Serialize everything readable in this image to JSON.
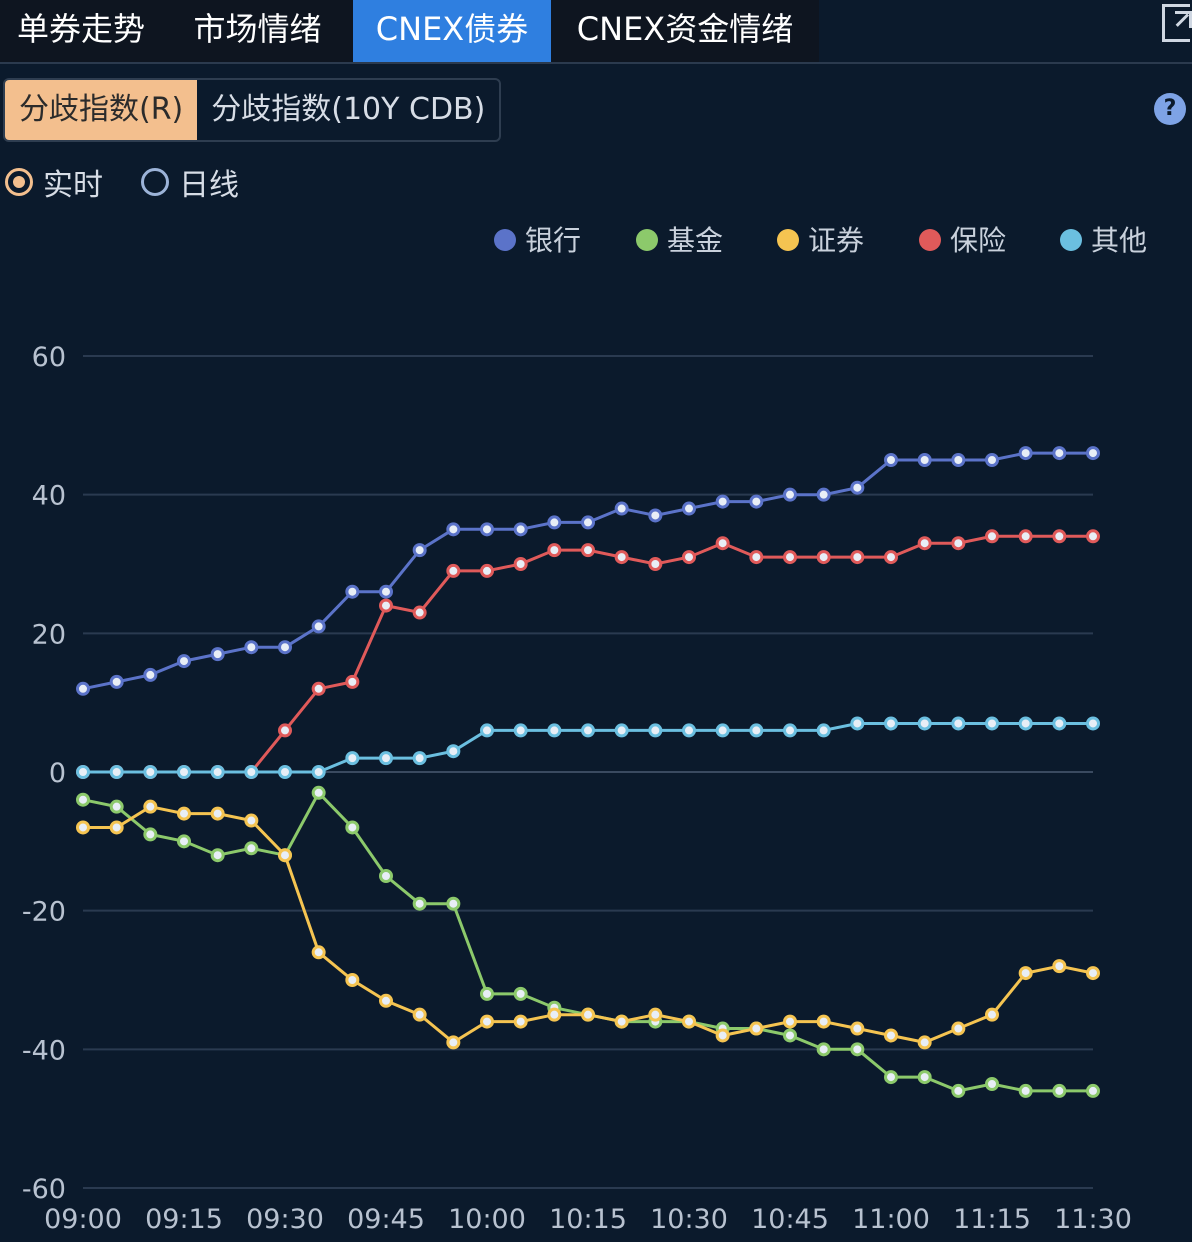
{
  "tabs": [
    {
      "label": "单券走势"
    },
    {
      "label": "市场情绪"
    },
    {
      "label": "CNEX债券"
    },
    {
      "label": "CNEX资金情绪"
    }
  ],
  "subtabs": [
    {
      "label": "分歧指数(R)"
    },
    {
      "label": "分歧指数(10Y CDB)"
    }
  ],
  "help_label": "?",
  "radios": [
    {
      "label": "实时"
    },
    {
      "label": "日线"
    }
  ],
  "colors": {
    "bank": "#5b73c9",
    "fund": "#8cc96b",
    "securities": "#f5c451",
    "insurance": "#e05a5a",
    "other": "#6bbfe0",
    "active_tab": "#2f7fe0",
    "selected_subtab": "#f3bf8e"
  },
  "chart_data": {
    "type": "line",
    "title": "",
    "xlabel": "",
    "ylabel": "",
    "ylim": [
      -60,
      60
    ],
    "yticks": [
      60,
      40,
      20,
      0,
      -20,
      -40,
      -60
    ],
    "x_tick_labels": [
      "09:00",
      "09:15",
      "09:30",
      "09:45",
      "10:00",
      "10:15",
      "10:30",
      "10:45",
      "11:00",
      "11:15",
      "11:30"
    ],
    "grid": "horizontal",
    "legend": "top-right",
    "x": [
      "09:00",
      "09:05",
      "09:10",
      "09:15",
      "09:20",
      "09:25",
      "09:30",
      "09:35",
      "09:40",
      "09:45",
      "09:50",
      "09:55",
      "10:00",
      "10:05",
      "10:10",
      "10:15",
      "10:20",
      "10:25",
      "10:30",
      "10:35",
      "10:40",
      "10:45",
      "10:50",
      "10:55",
      "11:00",
      "11:05",
      "11:10",
      "11:15",
      "11:20",
      "11:25",
      "11:30"
    ],
    "series": [
      {
        "name": "银行",
        "color": "#5b73c9",
        "values": [
          12,
          13,
          14,
          16,
          17,
          18,
          18,
          21,
          26,
          26,
          32,
          35,
          35,
          35,
          36,
          36,
          38,
          37,
          38,
          39,
          39,
          40,
          40,
          41,
          45,
          45,
          45,
          45,
          46,
          46,
          46
        ]
      },
      {
        "name": "基金",
        "color": "#8cc96b",
        "values": [
          -4,
          -5,
          -9,
          -10,
          -12,
          -11,
          -12,
          -3,
          -8,
          -15,
          -19,
          -19,
          -32,
          -32,
          -34,
          -35,
          -36,
          -36,
          -36,
          -37,
          -37,
          -38,
          -40,
          -40,
          -44,
          -44,
          -46,
          -45,
          -46,
          -46,
          -46
        ]
      },
      {
        "name": "证券",
        "color": "#f5c451",
        "values": [
          -8,
          -8,
          -5,
          -6,
          -6,
          -7,
          -12,
          -26,
          -30,
          -33,
          -35,
          -39,
          -36,
          -36,
          -35,
          -35,
          -36,
          -35,
          -36,
          -38,
          -37,
          -36,
          -36,
          -37,
          -38,
          -39,
          -37,
          -35,
          -29,
          -28,
          -29
        ]
      },
      {
        "name": "保险",
        "color": "#e05a5a",
        "values": [
          0,
          0,
          0,
          0,
          0,
          0,
          6,
          12,
          13,
          24,
          23,
          29,
          29,
          30,
          32,
          32,
          31,
          30,
          31,
          33,
          31,
          31,
          31,
          31,
          31,
          33,
          33,
          34,
          34,
          34,
          34
        ]
      },
      {
        "name": "其他",
        "color": "#6bbfe0",
        "values": [
          0,
          0,
          0,
          0,
          0,
          0,
          0,
          0,
          2,
          2,
          2,
          3,
          6,
          6,
          6,
          6,
          6,
          6,
          6,
          6,
          6,
          6,
          6,
          7,
          7,
          7,
          7,
          7,
          7,
          7,
          7
        ]
      }
    ]
  }
}
